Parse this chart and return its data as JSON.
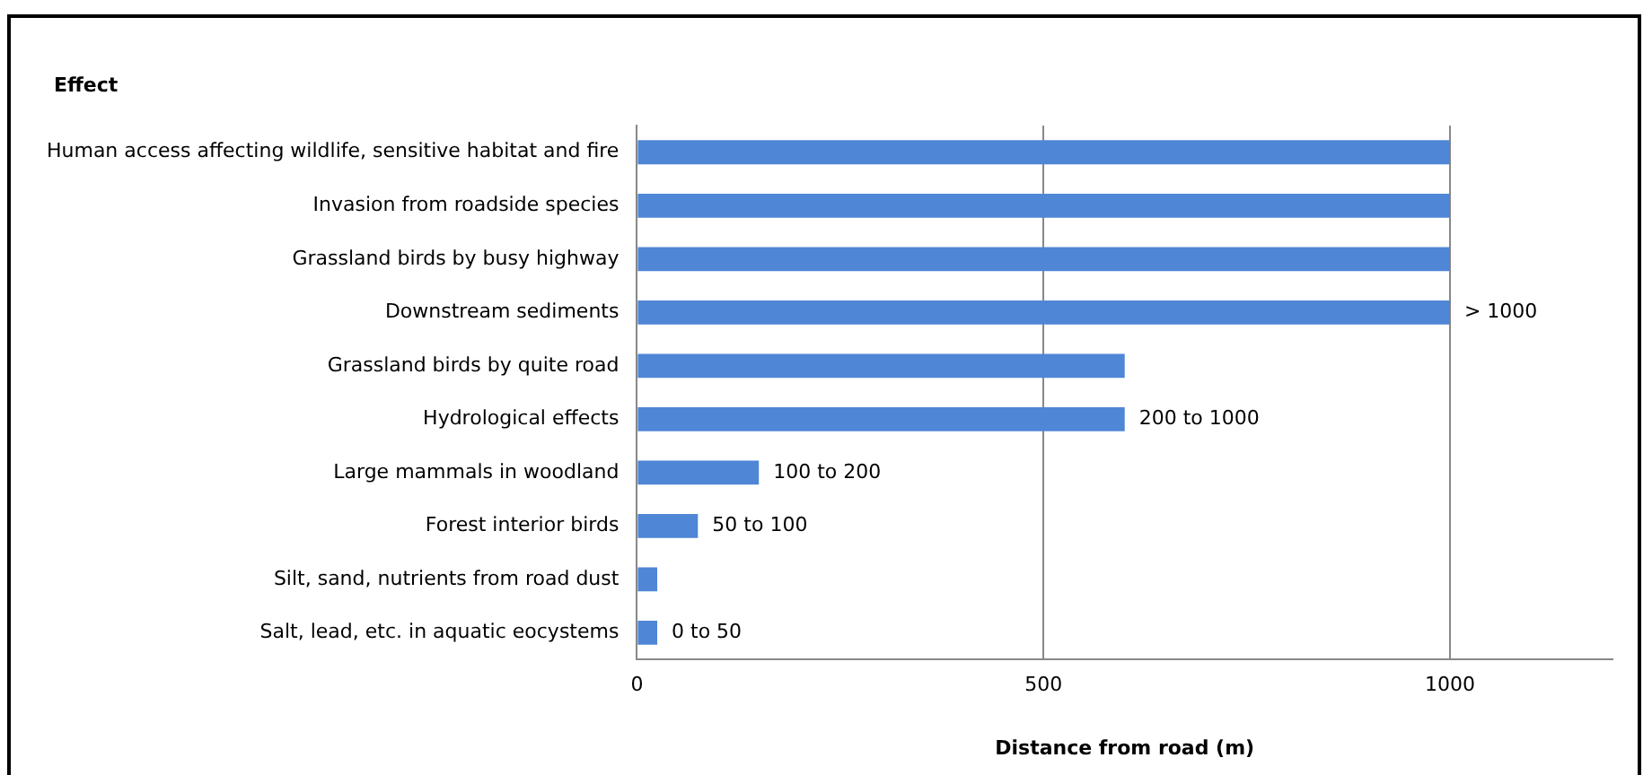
{
  "chart_data": {
    "type": "bar",
    "orientation": "horizontal",
    "ylabel": "Effect",
    "xlabel": "Distance from road (m)",
    "categories": [
      "Human access affecting wildlife, sensitive habitat and fire",
      "Invasion from roadside species",
      "Grassland birds by busy highway",
      "Downstream sediments",
      "Grassland birds by quite road",
      "Hydrological effects",
      "Large mammals in woodland",
      "Forest interior birds",
      "Silt, sand, nutrients from road dust",
      "Salt, lead, etc. in aquatic eocystems"
    ],
    "values": [
      1000,
      1000,
      1000,
      1000,
      600,
      600,
      150,
      75,
      25,
      25
    ],
    "color": "#4f86d6",
    "xlim": [
      0,
      1200
    ],
    "xticks": [
      0,
      500,
      1000
    ],
    "grid": "x",
    "legend": false,
    "annotations": [
      {
        "text": "> 1000",
        "x": 1000,
        "y": "Downstream sediments"
      },
      {
        "text": "200 to 1000",
        "x": 600,
        "y": "Hydrological effects"
      },
      {
        "text": "100 to 200",
        "x": 150,
        "y": "Large mammals in woodland"
      },
      {
        "text": "50 to 100",
        "x": 75,
        "y": "Forest interior birds"
      },
      {
        "text": "0 to 50",
        "x": 25,
        "y": "Salt, lead, etc. in aquatic eocystems"
      }
    ]
  }
}
